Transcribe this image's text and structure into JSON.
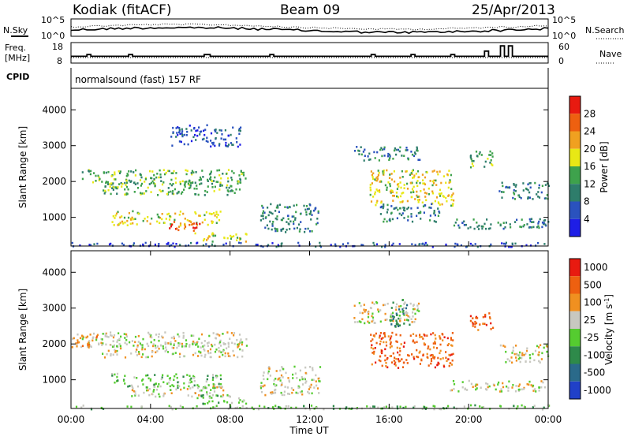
{
  "header": {
    "station": "Kodiak (fitACF)",
    "beam": "Beam 09",
    "date": "25/Apr/2013",
    "cpid_label": "CPID",
    "cpid_text": "normalsound (fast) 157 RF"
  },
  "top_panels": {
    "nsky_label": "N.Sky",
    "nsearch_label": "N.Search",
    "freq_label_1": "Freq.",
    "freq_label_2": "[MHz]",
    "nave_label": "Nave",
    "nsky_ticks": [
      "10^5",
      "10^0"
    ],
    "nsearch_ticks": [
      "10^5",
      "10^0"
    ],
    "freq_ticks": [
      "18",
      "8"
    ],
    "nave_ticks": [
      "60",
      "0"
    ],
    "freq_steps": [
      [
        0.0,
        11
      ],
      [
        0.8,
        12
      ],
      [
        1.0,
        11
      ],
      [
        2.7,
        11
      ],
      [
        2.9,
        12
      ],
      [
        3.1,
        11
      ],
      [
        6.5,
        11
      ],
      [
        6.7,
        12
      ],
      [
        7.0,
        11
      ],
      [
        9.8,
        11
      ],
      [
        10.0,
        12
      ],
      [
        10.2,
        11
      ],
      [
        14.9,
        11
      ],
      [
        15.1,
        12
      ],
      [
        15.3,
        11
      ],
      [
        16.9,
        11
      ],
      [
        17.1,
        12
      ],
      [
        17.3,
        11
      ],
      [
        19.1,
        12
      ],
      [
        19.3,
        11
      ],
      [
        20.6,
        11
      ],
      [
        20.8,
        14
      ],
      [
        21.0,
        11
      ],
      [
        21.4,
        11
      ],
      [
        21.6,
        17
      ],
      [
        21.8,
        11
      ],
      [
        22.0,
        17
      ],
      [
        22.2,
        11
      ],
      [
        24.0,
        11
      ]
    ]
  },
  "chart_data": [
    {
      "type": "heatmap",
      "title": "",
      "xlabel": "",
      "ylabel": "Slant Range [km]",
      "xlim": [
        "00:00",
        "00:00"
      ],
      "x_ticks": [
        "00:00",
        "04:00",
        "08:00",
        "12:00",
        "16:00",
        "20:00",
        "00:00"
      ],
      "ylim": [
        200,
        4600
      ],
      "y_ticks": [
        1000,
        2000,
        3000,
        4000
      ],
      "colorbar": {
        "label": "Power [dB]",
        "ticks": [
          4,
          8,
          12,
          16,
          20,
          24,
          28
        ],
        "colors": [
          "#1e1ee6",
          "#2a52be",
          "#2e7d6b",
          "#3ea24c",
          "#e8e815",
          "#f0a020",
          "#ee6010",
          "#e81a10"
        ]
      },
      "regions": [
        {
          "t0": 0.5,
          "t1": 8.8,
          "r0": 1950,
          "r1": 2350,
          "level": 3
        },
        {
          "t0": 1.5,
          "t1": 8.6,
          "r0": 1650,
          "r1": 2050,
          "level": 3
        },
        {
          "t0": 2.0,
          "t1": 7.5,
          "r0": 800,
          "r1": 1200,
          "level": 4
        },
        {
          "t0": 4.8,
          "t1": 6.6,
          "r0": 650,
          "r1": 900,
          "level": 6
        },
        {
          "t0": 6.2,
          "t1": 8.8,
          "r0": 350,
          "r1": 600,
          "level": 4
        },
        {
          "t0": 9.5,
          "t1": 12.5,
          "r0": 600,
          "r1": 1400,
          "level": 2
        },
        {
          "t0": 5.0,
          "t1": 8.5,
          "r0": 3000,
          "r1": 3600,
          "level": 1
        },
        {
          "t0": 14.2,
          "t1": 17.5,
          "r0": 2600,
          "r1": 3000,
          "level": 2
        },
        {
          "t0": 15.0,
          "t1": 19.2,
          "r0": 1350,
          "r1": 2350,
          "level": 4
        },
        {
          "t0": 15.5,
          "t1": 18.5,
          "r0": 900,
          "r1": 1400,
          "level": 2
        },
        {
          "t0": 19.0,
          "t1": 24.0,
          "r0": 700,
          "r1": 1000,
          "level": 2
        },
        {
          "t0": 21.5,
          "t1": 24.0,
          "r0": 1500,
          "r1": 2000,
          "level": 2
        },
        {
          "t0": 20.0,
          "t1": 21.2,
          "r0": 2400,
          "r1": 2900,
          "level": 3
        },
        {
          "t0": 0.0,
          "t1": 24.0,
          "r0": 200,
          "r1": 320,
          "level": 1
        }
      ]
    },
    {
      "type": "heatmap",
      "title": "",
      "xlabel": "Time UT",
      "ylabel": "Slant Range [km]",
      "xlim": [
        "00:00",
        "00:00"
      ],
      "x_ticks": [
        "00:00",
        "04:00",
        "08:00",
        "12:00",
        "16:00",
        "20:00",
        "00:00"
      ],
      "ylim": [
        200,
        4600
      ],
      "y_ticks": [
        1000,
        2000,
        3000,
        4000
      ],
      "colorbar": {
        "label": "Velocity [m s^-1]",
        "ticks": [
          1000,
          500,
          100,
          25,
          -25,
          -100,
          -500,
          -1000
        ],
        "colors": [
          "#2040c8",
          "#2a6a8a",
          "#2e8a4a",
          "#55cc30",
          "#c8c8c0",
          "#f09020",
          "#ee6010",
          "#e81a10"
        ]
      },
      "regions": [
        {
          "t0": 0.5,
          "t1": 8.8,
          "r0": 1950,
          "r1": 2350,
          "level": 4
        },
        {
          "t0": 1.5,
          "t1": 8.6,
          "r0": 1650,
          "r1": 2050,
          "level": 4
        },
        {
          "t0": 2.0,
          "t1": 7.5,
          "r0": 800,
          "r1": 1200,
          "level": 3
        },
        {
          "t0": 3.0,
          "t1": 8.0,
          "r0": 550,
          "r1": 850,
          "level": 4
        },
        {
          "t0": 6.2,
          "t1": 8.8,
          "r0": 350,
          "r1": 600,
          "level": 3
        },
        {
          "t0": 9.5,
          "t1": 12.5,
          "r0": 600,
          "r1": 1400,
          "level": 4
        },
        {
          "t0": 14.2,
          "t1": 17.5,
          "r0": 2600,
          "r1": 3200,
          "level": 4
        },
        {
          "t0": 15.0,
          "t1": 19.2,
          "r0": 1350,
          "r1": 2350,
          "level": 6
        },
        {
          "t0": 16.0,
          "t1": 17.0,
          "r0": 2500,
          "r1": 3300,
          "level": 2
        },
        {
          "t0": 19.0,
          "t1": 24.0,
          "r0": 700,
          "r1": 1000,
          "level": 4
        },
        {
          "t0": 20.0,
          "t1": 21.2,
          "r0": 2400,
          "r1": 2900,
          "level": 6
        },
        {
          "t0": 21.5,
          "t1": 24.0,
          "r0": 1500,
          "r1": 2000,
          "level": 4
        },
        {
          "t0": 0.0,
          "t1": 1.5,
          "r0": 1900,
          "r1": 2300,
          "level": 5
        },
        {
          "t0": 0.0,
          "t1": 24.0,
          "r0": 200,
          "r1": 320,
          "level": 3
        }
      ]
    }
  ]
}
